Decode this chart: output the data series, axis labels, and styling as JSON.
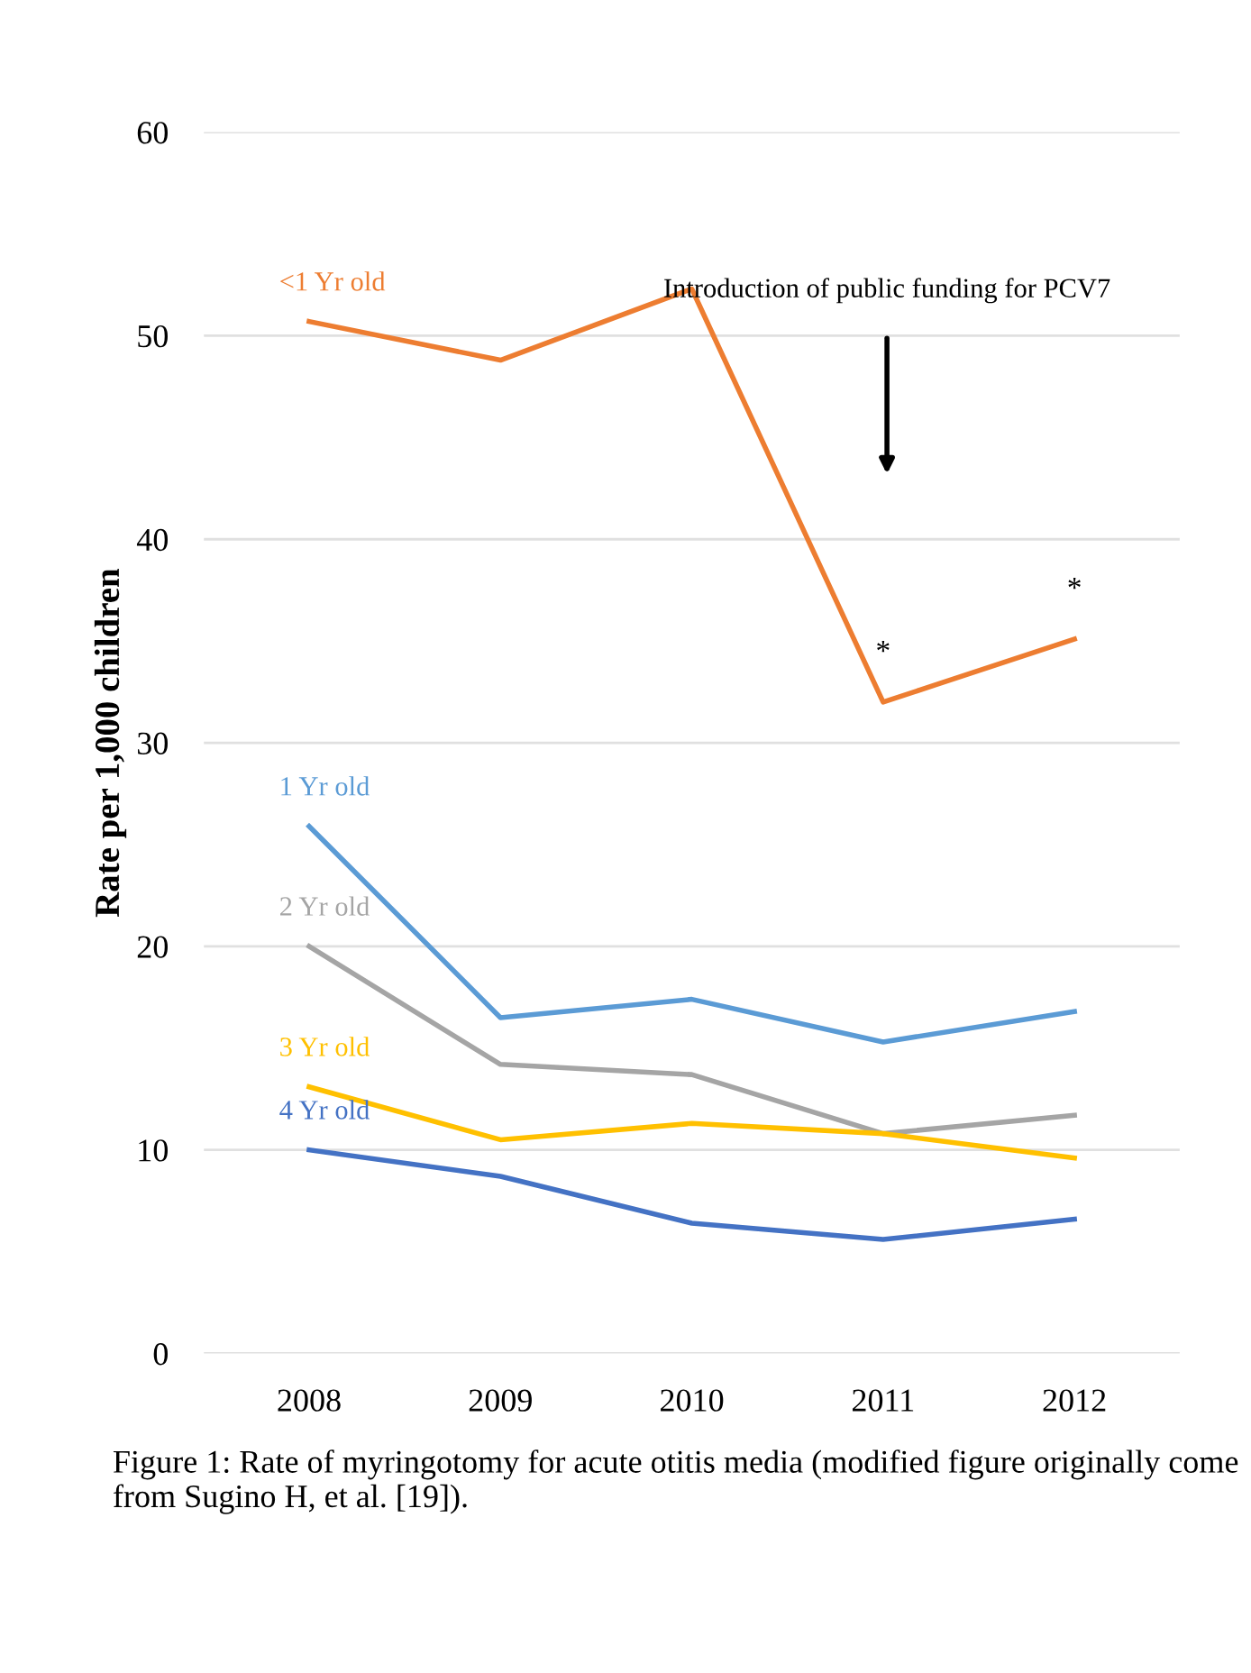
{
  "chart_data": {
    "type": "line",
    "ylabel": "Rate per 1,000 children",
    "categories": [
      "2008",
      "2009",
      "2010",
      "2011",
      "2012"
    ],
    "series": [
      {
        "name": "<1 Yr old",
        "color": "#ed7d31",
        "values": [
          50.7,
          48.8,
          52.3,
          32.0,
          35.1
        ]
      },
      {
        "name": "1 Yr old",
        "color": "#5b9bd5",
        "values": [
          25.9,
          16.5,
          17.4,
          15.3,
          16.8
        ]
      },
      {
        "name": "2 Yr old",
        "color": "#a5a5a5",
        "values": [
          20.0,
          14.2,
          13.7,
          10.8,
          11.7
        ]
      },
      {
        "name": "3 Yr old",
        "color": "#ffc000",
        "values": [
          13.1,
          10.5,
          11.3,
          10.8,
          9.6
        ]
      },
      {
        "name": "4 Yr old",
        "color": "#4472c4",
        "values": [
          10.0,
          8.7,
          6.4,
          5.6,
          6.6
        ]
      }
    ],
    "ylim": [
      0,
      60
    ],
    "yticks": [
      0,
      10,
      20,
      30,
      40,
      50,
      60
    ],
    "grid": "y",
    "legend": false,
    "marker": "none",
    "line_style": "solid",
    "annotations": [
      "Introduction of public funding for PCV7",
      {
        "text": "*",
        "x": "2011",
        "y": 32.0
      },
      {
        "text": "*",
        "x": "2012",
        "y": 35.1
      },
      "Figure 1: Rate of myringotomy for acute otitis media (modified figure originally come from Sugino H, et al. [19])."
    ]
  }
}
